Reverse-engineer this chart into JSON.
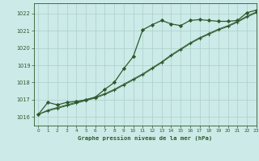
{
  "title": "Graphe pression niveau de la mer (hPa)",
  "bg_color": "#cceae7",
  "grid_color": "#aacfcc",
  "line_color": "#2d5a2d",
  "xlim": [
    -0.5,
    23
  ],
  "ylim": [
    1015.5,
    1022.6
  ],
  "yticks": [
    1016,
    1017,
    1018,
    1019,
    1020,
    1021,
    1022
  ],
  "xticks": [
    0,
    1,
    2,
    3,
    4,
    5,
    6,
    7,
    8,
    9,
    10,
    11,
    12,
    13,
    14,
    15,
    16,
    17,
    18,
    19,
    20,
    21,
    22,
    23
  ],
  "series1_x": [
    0,
    1,
    2,
    3,
    4,
    5,
    6,
    7,
    8,
    9,
    10,
    11,
    12,
    13,
    14,
    15,
    16,
    17,
    18,
    19,
    20,
    21,
    22,
    23
  ],
  "series1_y": [
    1016.15,
    1016.85,
    1016.7,
    1016.85,
    1016.9,
    1017.0,
    1017.15,
    1017.6,
    1018.0,
    1018.8,
    1019.5,
    1021.05,
    1021.35,
    1021.6,
    1021.4,
    1021.3,
    1021.6,
    1021.65,
    1021.6,
    1021.55,
    1021.55,
    1021.6,
    1022.05,
    1022.2
  ],
  "series2_x": [
    0,
    1,
    2,
    3,
    4,
    5,
    6,
    7,
    8,
    9,
    10,
    11,
    12,
    13,
    14,
    15,
    16,
    17,
    18,
    19,
    20,
    21,
    22,
    23
  ],
  "series2_y": [
    1016.15,
    1016.4,
    1016.55,
    1016.7,
    1016.85,
    1017.0,
    1017.15,
    1017.35,
    1017.6,
    1017.9,
    1018.2,
    1018.5,
    1018.85,
    1019.2,
    1019.6,
    1019.95,
    1020.3,
    1020.6,
    1020.85,
    1021.1,
    1021.3,
    1021.55,
    1021.85,
    1022.1
  ],
  "series3_x": [
    0,
    1,
    2,
    3,
    4,
    5,
    6,
    7,
    8,
    9,
    10,
    11,
    12,
    13,
    14,
    15,
    16,
    17,
    18,
    19,
    20,
    21,
    22,
    23
  ],
  "series3_y": [
    1016.15,
    1016.35,
    1016.5,
    1016.65,
    1016.8,
    1016.95,
    1017.1,
    1017.3,
    1017.55,
    1017.85,
    1018.15,
    1018.45,
    1018.8,
    1019.15,
    1019.55,
    1019.9,
    1020.25,
    1020.55,
    1020.8,
    1021.05,
    1021.25,
    1021.5,
    1021.8,
    1022.05
  ]
}
